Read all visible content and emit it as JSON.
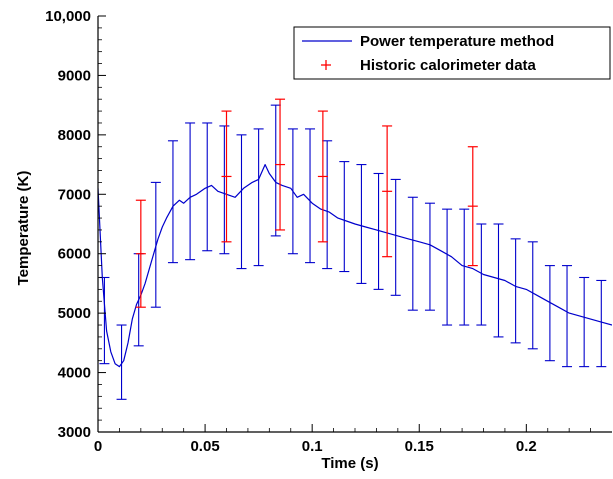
{
  "chart_data": {
    "type": "line",
    "xlabel": "Time (s)",
    "ylabel": "Temperature (K)",
    "xlim": [
      0,
      0.24
    ],
    "ylim": [
      3000,
      10000
    ],
    "x_ticks": [
      0,
      0.05,
      0.1,
      0.15,
      0.2
    ],
    "x_tick_labels": [
      "0",
      "0.05",
      "0.1",
      "0.15",
      "0.2"
    ],
    "y_ticks": [
      3000,
      4000,
      5000,
      6000,
      7000,
      8000,
      9000,
      10000
    ],
    "y_tick_labels": [
      "3000",
      "4000",
      "5000",
      "6000",
      "7000",
      "8000",
      "9000",
      "10,000"
    ],
    "legend_position": "top-right",
    "series": [
      {
        "name": "Power temperature method",
        "color": "#0000cc",
        "x": [
          0,
          0.002,
          0.004,
          0.006,
          0.008,
          0.01,
          0.012,
          0.014,
          0.016,
          0.018,
          0.02,
          0.022,
          0.024,
          0.026,
          0.028,
          0.03,
          0.032,
          0.035,
          0.038,
          0.04,
          0.043,
          0.046,
          0.05,
          0.053,
          0.056,
          0.06,
          0.064,
          0.068,
          0.072,
          0.075,
          0.078,
          0.08,
          0.083,
          0.086,
          0.09,
          0.093,
          0.096,
          0.1,
          0.104,
          0.108,
          0.112,
          0.116,
          0.12,
          0.125,
          0.13,
          0.135,
          0.14,
          0.145,
          0.15,
          0.155,
          0.16,
          0.165,
          0.17,
          0.175,
          0.18,
          0.185,
          0.19,
          0.195,
          0.2,
          0.205,
          0.21,
          0.215,
          0.22,
          0.225,
          0.23,
          0.235,
          0.24
        ],
        "y": [
          7100,
          5600,
          4700,
          4350,
          4150,
          4100,
          4200,
          4500,
          4900,
          5150,
          5300,
          5500,
          5750,
          6000,
          6250,
          6450,
          6600,
          6800,
          6900,
          6850,
          6950,
          7000,
          7100,
          7150,
          7050,
          7000,
          6950,
          7100,
          7200,
          7250,
          7500,
          7350,
          7200,
          7150,
          7100,
          6950,
          7000,
          6850,
          6750,
          6700,
          6600,
          6550,
          6500,
          6450,
          6400,
          6350,
          6300,
          6250,
          6200,
          6150,
          6050,
          5950,
          5800,
          5750,
          5650,
          5600,
          5550,
          5450,
          5400,
          5300,
          5200,
          5100,
          5000,
          4950,
          4900,
          4850,
          4800
        ]
      },
      {
        "name": "Historic calorimeter data",
        "color": "#ff0000",
        "x": [
          0.02,
          0.06,
          0.085,
          0.105,
          0.135,
          0.175
        ],
        "y": [
          6000,
          7300,
          7500,
          7300,
          7050,
          6800
        ],
        "y_upper": [
          6900,
          8400,
          8600,
          8400,
          8150,
          7800
        ],
        "y_lower": [
          5100,
          6200,
          6400,
          6200,
          5950,
          5800
        ]
      }
    ],
    "error_bars": {
      "series": "Power temperature method",
      "x": [
        0.003,
        0.011,
        0.019,
        0.027,
        0.035,
        0.043,
        0.051,
        0.059,
        0.067,
        0.075,
        0.083,
        0.091,
        0.099,
        0.107,
        0.115,
        0.123,
        0.131,
        0.139,
        0.147,
        0.155,
        0.163,
        0.171,
        0.179,
        0.187,
        0.195,
        0.203,
        0.211,
        0.219,
        0.227,
        0.235
      ],
      "y": [
        4900,
        4200,
        5200,
        6000,
        6850,
        7000,
        7100,
        7050,
        7000,
        7150,
        7400,
        7150,
        6950,
        6850,
        6700,
        6550,
        6450,
        6350,
        6250,
        6150,
        6000,
        5850,
        5700,
        5600,
        5500,
        5400,
        5300,
        5150,
        5000,
        4850
      ],
      "upper": [
        5600,
        4800,
        6000,
        7200,
        7900,
        8200,
        8200,
        8150,
        8000,
        8100,
        8500,
        8100,
        8100,
        7900,
        7550,
        7500,
        7350,
        7250,
        6950,
        6850,
        6750,
        6750,
        6500,
        6500,
        6250,
        6200,
        5800,
        5800,
        5600,
        5550
      ],
      "lower": [
        4150,
        3550,
        4450,
        5100,
        5850,
        5900,
        6050,
        6000,
        5750,
        5800,
        6300,
        6000,
        5850,
        5750,
        5700,
        5500,
        5400,
        5300,
        5050,
        5050,
        4800,
        4800,
        4800,
        4600,
        4500,
        4400,
        4200,
        4100,
        4100,
        4100
      ]
    }
  }
}
